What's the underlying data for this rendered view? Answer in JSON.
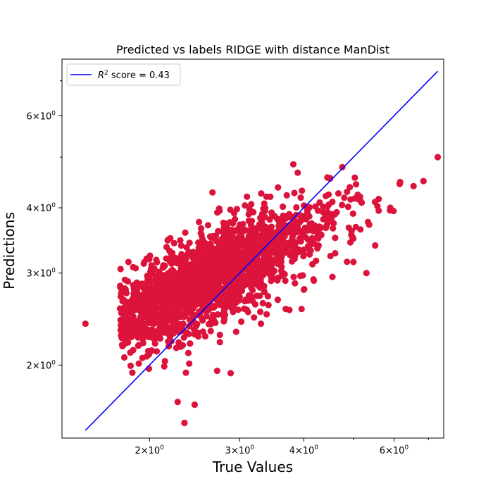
{
  "chart_data": {
    "type": "scatter",
    "title": "Predicted vs labels RIDGE  with distance ManDist",
    "xlabel": "True Values",
    "ylabel": "Predictions",
    "xscale": "log",
    "yscale": "log",
    "xlim": [
      1.35,
      7.5
    ],
    "ylim": [
      1.45,
      7.7
    ],
    "grid": false,
    "legend_position": "top-left",
    "x_ticks": [
      {
        "value": 2,
        "base": "2",
        "mult": "×",
        "pow": "10",
        "exp": "0"
      },
      {
        "value": 3,
        "base": "3",
        "mult": "×",
        "pow": "10",
        "exp": "0"
      },
      {
        "value": 4,
        "base": "4",
        "mult": "×",
        "pow": "10",
        "exp": "0"
      },
      {
        "value": 6,
        "base": "6",
        "mult": "×",
        "pow": "10",
        "exp": "0"
      }
    ],
    "y_ticks": [
      {
        "value": 2,
        "base": "2",
        "mult": "×",
        "pow": "10",
        "exp": "0"
      },
      {
        "value": 3,
        "base": "3",
        "mult": "×",
        "pow": "10",
        "exp": "0"
      },
      {
        "value": 4,
        "base": "4",
        "mult": "×",
        "pow": "10",
        "exp": "0"
      },
      {
        "value": 6,
        "base": "6",
        "mult": "×",
        "pow": "10",
        "exp": "0"
      }
    ],
    "minor_ticks": [
      5,
      7
    ],
    "series": [
      {
        "name": "R² score = 0.43",
        "type": "line",
        "color": "#0000ff",
        "x": [
          1.5,
          7.3
        ],
        "y": [
          1.5,
          7.3
        ]
      },
      {
        "type": "scatter",
        "color": "#dc143c",
        "x": [
          1.5,
          1.82,
          1.92,
          2.27,
          2.34,
          2.34,
          2.45,
          2.71,
          2.88,
          3.22,
          3.5,
          4.1,
          4.5,
          4.75,
          5.0,
          5.15,
          5.3,
          5.6,
          5.9,
          6.55,
          6.85,
          7.3,
          2.6,
          3.0,
          4.2,
          3.3,
          3.75,
          2.4,
          3.1,
          4.55
        ],
        "y": [
          2.4,
          3.15,
          2.7,
          1.7,
          1.55,
          1.55,
          1.68,
          1.95,
          1.93,
          3.65,
          3.55,
          3.85,
          4.55,
          4.05,
          3.15,
          4.2,
          3.0,
          3.95,
          4.0,
          4.4,
          4.5,
          5.0,
          3.3,
          2.7,
          3.7,
          2.4,
          2.55,
          2.2,
          4.2,
          2.95
        ]
      }
    ],
    "cloud": {
      "point_count": 2200,
      "intercept": -0.28,
      "slope": 0.48,
      "sigma": 0.1
    }
  }
}
